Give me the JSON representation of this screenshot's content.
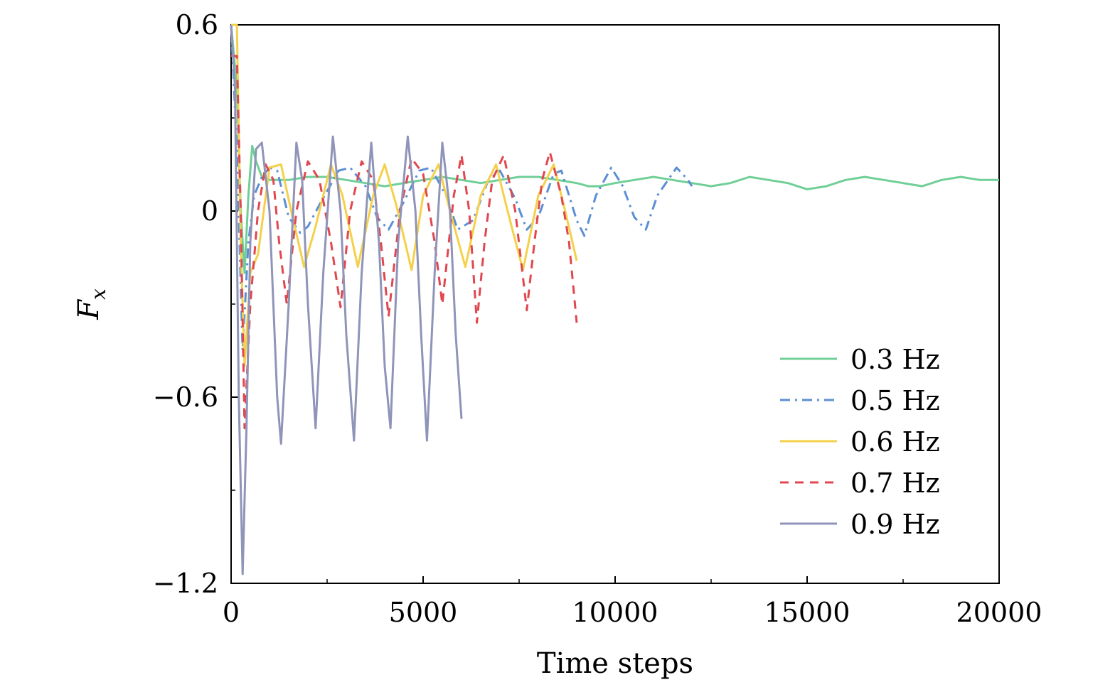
{
  "chart_data": {
    "type": "line",
    "xlabel": "Time steps",
    "ylabel_main": "F",
    "ylabel_sub": "x",
    "xlim": [
      0,
      20000
    ],
    "ylim": [
      -1.2,
      0.6
    ],
    "xticks": [
      0,
      5000,
      10000,
      15000,
      20000
    ],
    "xtick_labels": [
      "0",
      "5000",
      "10000",
      "15000",
      "20000"
    ],
    "yticks": [
      0.6,
      0,
      -0.6,
      -1.2
    ],
    "ytick_labels": [
      "0.6",
      "0",
      "−0.6",
      "−1.2"
    ],
    "grid": false,
    "legend_position": "bottom-right",
    "series": [
      {
        "name": "0.3 Hz",
        "color": "#6fcf97",
        "style": "solid",
        "points": [
          [
            0,
            0.6
          ],
          [
            150,
            0.4
          ],
          [
            250,
            0.0
          ],
          [
            350,
            -0.2
          ],
          [
            450,
            0.05
          ],
          [
            550,
            0.21
          ],
          [
            650,
            0.16
          ],
          [
            800,
            0.11
          ],
          [
            1000,
            0.1
          ],
          [
            1500,
            0.1
          ],
          [
            2000,
            0.11
          ],
          [
            2500,
            0.11
          ],
          [
            3000,
            0.1
          ],
          [
            3500,
            0.09
          ],
          [
            4000,
            0.08
          ],
          [
            4500,
            0.09
          ],
          [
            5000,
            0.1
          ],
          [
            5500,
            0.11
          ],
          [
            6000,
            0.1
          ],
          [
            6500,
            0.09
          ],
          [
            7000,
            0.1
          ],
          [
            7500,
            0.11
          ],
          [
            8000,
            0.11
          ],
          [
            8500,
            0.1
          ],
          [
            9000,
            0.09
          ],
          [
            9300,
            0.08
          ],
          [
            9600,
            0.08
          ],
          [
            10000,
            0.09
          ],
          [
            10500,
            0.1
          ],
          [
            11000,
            0.11
          ],
          [
            11500,
            0.1
          ],
          [
            12000,
            0.09
          ],
          [
            12500,
            0.08
          ],
          [
            13000,
            0.09
          ],
          [
            13500,
            0.11
          ],
          [
            14000,
            0.1
          ],
          [
            14500,
            0.09
          ],
          [
            15000,
            0.07
          ],
          [
            15500,
            0.08
          ],
          [
            16000,
            0.1
          ],
          [
            16500,
            0.11
          ],
          [
            17000,
            0.1
          ],
          [
            17500,
            0.09
          ],
          [
            18000,
            0.08
          ],
          [
            18500,
            0.1
          ],
          [
            19000,
            0.11
          ],
          [
            19500,
            0.1
          ],
          [
            20000,
            0.1
          ]
        ]
      },
      {
        "name": "0.5 Hz",
        "color": "#5b8fd4",
        "style": "dashdot",
        "points": [
          [
            0,
            0.6
          ],
          [
            150,
            0.2
          ],
          [
            300,
            -0.45
          ],
          [
            450,
            -0.1
          ],
          [
            600,
            0.05
          ],
          [
            800,
            0.11
          ],
          [
            1000,
            0.14
          ],
          [
            1200,
            0.13
          ],
          [
            1500,
            -0.02
          ],
          [
            1800,
            -0.07
          ],
          [
            2000,
            -0.05
          ],
          [
            2300,
            0.02
          ],
          [
            2800,
            0.13
          ],
          [
            3100,
            0.14
          ],
          [
            3500,
            0.08
          ],
          [
            3800,
            -0.02
          ],
          [
            4100,
            -0.06
          ],
          [
            4500,
            0.03
          ],
          [
            4900,
            0.13
          ],
          [
            5200,
            0.14
          ],
          [
            5600,
            0.05
          ],
          [
            5900,
            -0.06
          ],
          [
            6300,
            -0.03
          ],
          [
            6700,
            0.1
          ],
          [
            7000,
            0.13
          ],
          [
            7400,
            0.04
          ],
          [
            7700,
            -0.06
          ],
          [
            8000,
            -0.02
          ],
          [
            8400,
            0.12
          ],
          [
            8600,
            0.13
          ],
          [
            9000,
            -0.03
          ],
          [
            9200,
            -0.08
          ],
          [
            9500,
            0.05
          ],
          [
            9900,
            0.14
          ],
          [
            10200,
            0.08
          ],
          [
            10500,
            -0.02
          ],
          [
            10800,
            -0.06
          ],
          [
            11100,
            0.05
          ],
          [
            11600,
            0.14
          ],
          [
            11900,
            0.1
          ],
          [
            12000,
            0.08
          ]
        ]
      },
      {
        "name": "0.6 Hz",
        "color": "#f5d04a",
        "style": "solid",
        "points": [
          [
            0,
            0.6
          ],
          [
            150,
            0.6
          ],
          [
            250,
            -0.1
          ],
          [
            350,
            -0.5
          ],
          [
            500,
            -0.2
          ],
          [
            700,
            -0.14
          ],
          [
            1000,
            0.14
          ],
          [
            1300,
            0.15
          ],
          [
            1600,
            -0.02
          ],
          [
            1900,
            -0.18
          ],
          [
            2200,
            -0.05
          ],
          [
            2600,
            0.15
          ],
          [
            2900,
            0.05
          ],
          [
            3300,
            -0.18
          ],
          [
            3700,
            0.05
          ],
          [
            4000,
            0.15
          ],
          [
            4300,
            0.02
          ],
          [
            4700,
            -0.19
          ],
          [
            5000,
            0.05
          ],
          [
            5400,
            0.15
          ],
          [
            5700,
            0.0
          ],
          [
            6100,
            -0.18
          ],
          [
            6500,
            0.05
          ],
          [
            6900,
            0.15
          ],
          [
            7200,
            0.0
          ],
          [
            7600,
            -0.19
          ],
          [
            8000,
            0.05
          ],
          [
            8400,
            0.15
          ],
          [
            8700,
            0.0
          ],
          [
            9000,
            -0.16
          ]
        ]
      },
      {
        "name": "0.7 Hz",
        "color": "#e0474f",
        "style": "dashed",
        "points": [
          [
            0,
            0.5
          ],
          [
            150,
            0.5
          ],
          [
            250,
            0.0
          ],
          [
            350,
            -0.7
          ],
          [
            500,
            -0.3
          ],
          [
            700,
            0.0
          ],
          [
            900,
            0.15
          ],
          [
            1100,
            0.1
          ],
          [
            1250,
            -0.1
          ],
          [
            1450,
            -0.3
          ],
          [
            1700,
            0.0
          ],
          [
            2000,
            0.16
          ],
          [
            2300,
            0.1
          ],
          [
            2600,
            -0.1
          ],
          [
            2850,
            -0.31
          ],
          [
            3100,
            0.0
          ],
          [
            3400,
            0.16
          ],
          [
            3700,
            0.1
          ],
          [
            3900,
            -0.1
          ],
          [
            4100,
            -0.34
          ],
          [
            4400,
            0.0
          ],
          [
            4700,
            0.17
          ],
          [
            5000,
            0.12
          ],
          [
            5300,
            -0.1
          ],
          [
            5500,
            -0.3
          ],
          [
            5800,
            0.05
          ],
          [
            6000,
            0.18
          ],
          [
            6200,
            0.0
          ],
          [
            6400,
            -0.36
          ],
          [
            6600,
            -0.1
          ],
          [
            6800,
            0.1
          ],
          [
            7100,
            0.18
          ],
          [
            7400,
            0.0
          ],
          [
            7700,
            -0.32
          ],
          [
            7900,
            -0.1
          ],
          [
            8100,
            0.1
          ],
          [
            8300,
            0.19
          ],
          [
            8600,
            0.05
          ],
          [
            8800,
            -0.1
          ],
          [
            9000,
            -0.36
          ]
        ]
      },
      {
        "name": "0.9 Hz",
        "color": "#8f94b8",
        "style": "solid",
        "points": [
          [
            0,
            0.6
          ],
          [
            100,
            0.4
          ],
          [
            200,
            -0.6
          ],
          [
            300,
            -1.17
          ],
          [
            400,
            -0.7
          ],
          [
            500,
            -0.1
          ],
          [
            650,
            0.2
          ],
          [
            800,
            0.22
          ],
          [
            1000,
            0.0
          ],
          [
            1200,
            -0.6
          ],
          [
            1300,
            -0.75
          ],
          [
            1500,
            -0.3
          ],
          [
            1700,
            0.22
          ],
          [
            1850,
            0.1
          ],
          [
            2000,
            -0.3
          ],
          [
            2200,
            -0.7
          ],
          [
            2400,
            -0.2
          ],
          [
            2650,
            0.24
          ],
          [
            2850,
            0.0
          ],
          [
            3000,
            -0.4
          ],
          [
            3200,
            -0.74
          ],
          [
            3400,
            -0.2
          ],
          [
            3650,
            0.22
          ],
          [
            3850,
            -0.1
          ],
          [
            4000,
            -0.5
          ],
          [
            4150,
            -0.7
          ],
          [
            4350,
            -0.1
          ],
          [
            4600,
            0.24
          ],
          [
            4800,
            0.0
          ],
          [
            4950,
            -0.4
          ],
          [
            5100,
            -0.74
          ],
          [
            5300,
            -0.2
          ],
          [
            5500,
            0.22
          ],
          [
            5700,
            0.0
          ],
          [
            5850,
            -0.4
          ],
          [
            6000,
            -0.67
          ]
        ]
      }
    ]
  }
}
